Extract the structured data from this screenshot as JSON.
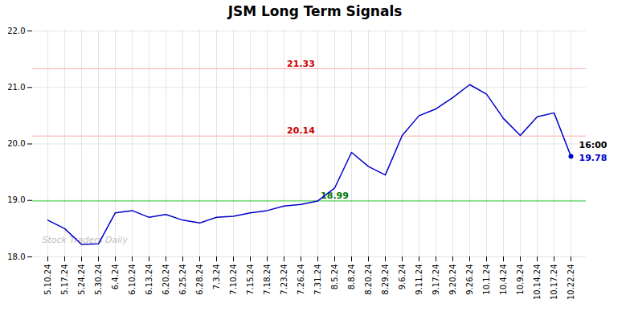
{
  "chart_data": {
    "type": "line",
    "title": "JSM Long Term Signals",
    "categories": [
      "5.10.24",
      "5.17.24",
      "5.24.24",
      "5.30.24",
      "6.4.24",
      "6.10.24",
      "6.13.24",
      "6.20.24",
      "6.25.24",
      "6.28.24",
      "7.3.24",
      "7.10.24",
      "7.15.24",
      "7.18.24",
      "7.23.24",
      "7.26.24",
      "7.31.24",
      "8.5.24",
      "8.8.24",
      "8.20.24",
      "8.29.24",
      "9.6.24",
      "9.11.24",
      "9.17.24",
      "9.20.24",
      "9.26.24",
      "10.1.24",
      "10.4.24",
      "10.9.24",
      "10.14.24",
      "10.17.24",
      "10.22.24"
    ],
    "values": [
      18.65,
      18.5,
      18.22,
      18.23,
      18.78,
      18.82,
      18.7,
      18.75,
      18.65,
      18.6,
      18.7,
      18.72,
      18.78,
      18.82,
      18.9,
      18.93,
      18.99,
      19.22,
      19.85,
      19.6,
      19.45,
      20.15,
      20.5,
      20.62,
      20.82,
      21.05,
      20.88,
      20.45,
      20.15,
      20.48,
      20.55,
      19.78
    ],
    "color": "#0000cc",
    "ylim": [
      18,
      22
    ],
    "yticks": [
      18,
      19,
      20,
      21,
      22
    ],
    "grid": true,
    "hlines": [
      {
        "value": 21.33,
        "label": "21.33",
        "color": "#ffaaaa",
        "label_color": "#cc0000",
        "label_at": "7.26.24"
      },
      {
        "value": 20.14,
        "label": "20.14",
        "color": "#ffaaaa",
        "label_color": "#cc0000",
        "label_at": "7.26.24"
      },
      {
        "value": 18.99,
        "label": "18.99",
        "color": "#33cc33",
        "label_color": "#007700",
        "label_at": "8.5.24"
      }
    ],
    "end_labels": [
      {
        "text": "16:00",
        "color": "#000000"
      },
      {
        "text": "19.78",
        "color": "#0000cc"
      }
    ],
    "watermark": {
      "text": "Stock Traders Daily",
      "color": "#c0c0c0"
    }
  }
}
